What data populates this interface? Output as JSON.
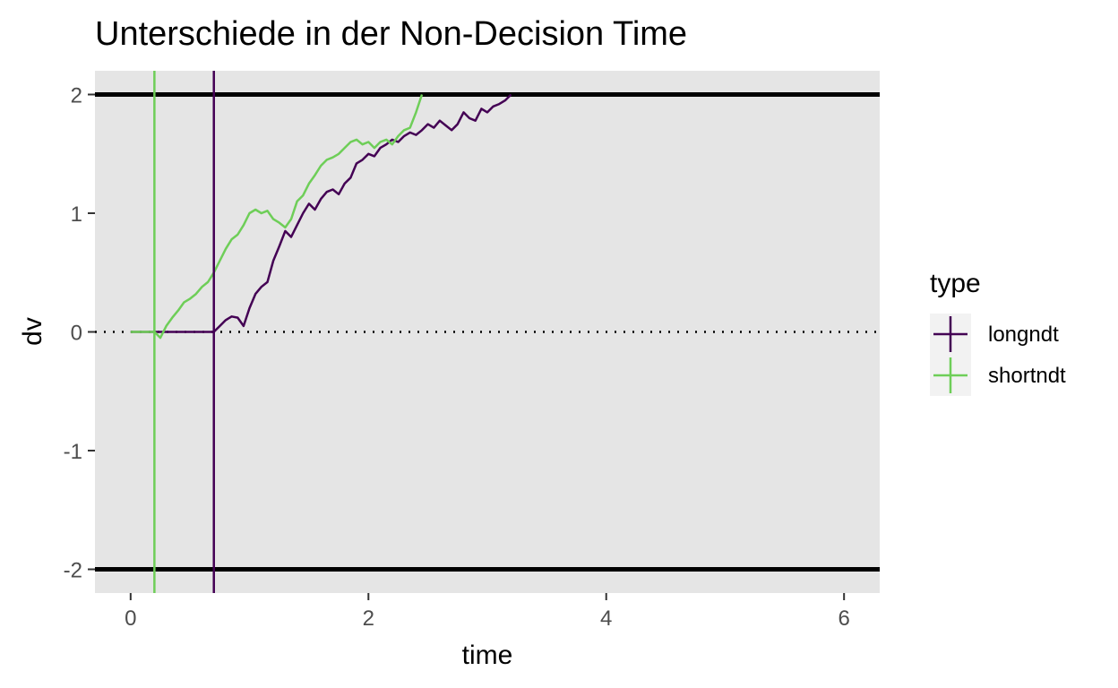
{
  "chart_data": {
    "type": "line",
    "title": "Unterschiede in der Non-Decision Time",
    "xlabel": "time",
    "ylabel": "dv",
    "xlim": [
      -0.3,
      6.3
    ],
    "ylim": [
      -2.2,
      2.2
    ],
    "x_ticks": [
      0,
      2,
      4,
      6
    ],
    "y_ticks": [
      -2,
      -1,
      0,
      1,
      2
    ],
    "x_tick_labels": [
      "0",
      "2",
      "4",
      "6"
    ],
    "y_tick_labels": [
      "-2",
      "-1",
      "0",
      "1",
      "2"
    ],
    "grid": false,
    "legend": {
      "title": "type",
      "position": "right"
    },
    "boundaries": [
      2,
      -2
    ],
    "zero_line": 0,
    "series": [
      {
        "name": "longndt",
        "color": "#440154",
        "ndt": 0.7,
        "x": [
          0,
          0.7,
          0.75,
          0.8,
          0.85,
          0.9,
          0.95,
          1.0,
          1.05,
          1.1,
          1.15,
          1.2,
          1.25,
          1.3,
          1.35,
          1.4,
          1.45,
          1.5,
          1.55,
          1.6,
          1.65,
          1.7,
          1.75,
          1.8,
          1.85,
          1.9,
          1.95,
          2.0,
          2.05,
          2.1,
          2.15,
          2.2,
          2.25,
          2.3,
          2.35,
          2.4,
          2.45,
          2.5,
          2.55,
          2.6,
          2.65,
          2.7,
          2.75,
          2.8,
          2.85,
          2.9,
          2.95,
          3.0,
          3.05,
          3.1,
          3.15,
          3.2
        ],
        "y": [
          0,
          0,
          0.05,
          0.1,
          0.13,
          0.12,
          0.05,
          0.2,
          0.32,
          0.38,
          0.42,
          0.6,
          0.72,
          0.85,
          0.8,
          0.9,
          1.0,
          1.08,
          1.03,
          1.12,
          1.18,
          1.2,
          1.16,
          1.25,
          1.3,
          1.42,
          1.45,
          1.5,
          1.48,
          1.55,
          1.58,
          1.62,
          1.6,
          1.65,
          1.68,
          1.66,
          1.7,
          1.75,
          1.72,
          1.78,
          1.74,
          1.7,
          1.75,
          1.85,
          1.8,
          1.78,
          1.88,
          1.85,
          1.9,
          1.92,
          1.95,
          2.0
        ]
      },
      {
        "name": "shortndt",
        "color": "#6ece58",
        "ndt": 0.2,
        "x": [
          0,
          0.2,
          0.25,
          0.3,
          0.35,
          0.4,
          0.45,
          0.5,
          0.55,
          0.6,
          0.65,
          0.7,
          0.75,
          0.8,
          0.85,
          0.9,
          0.95,
          1.0,
          1.05,
          1.1,
          1.15,
          1.2,
          1.25,
          1.3,
          1.35,
          1.4,
          1.45,
          1.5,
          1.55,
          1.6,
          1.65,
          1.7,
          1.75,
          1.8,
          1.85,
          1.9,
          1.95,
          2.0,
          2.05,
          2.1,
          2.15,
          2.2,
          2.25,
          2.3,
          2.35,
          2.4,
          2.45
        ],
        "y": [
          0,
          0,
          -0.05,
          0.05,
          0.12,
          0.18,
          0.25,
          0.28,
          0.32,
          0.38,
          0.42,
          0.5,
          0.6,
          0.7,
          0.78,
          0.82,
          0.9,
          1.0,
          1.03,
          1.0,
          1.02,
          0.95,
          0.92,
          0.88,
          0.95,
          1.1,
          1.15,
          1.25,
          1.32,
          1.4,
          1.45,
          1.47,
          1.5,
          1.55,
          1.6,
          1.62,
          1.58,
          1.6,
          1.55,
          1.6,
          1.62,
          1.58,
          1.65,
          1.7,
          1.72,
          1.85,
          2.0
        ]
      }
    ]
  }
}
